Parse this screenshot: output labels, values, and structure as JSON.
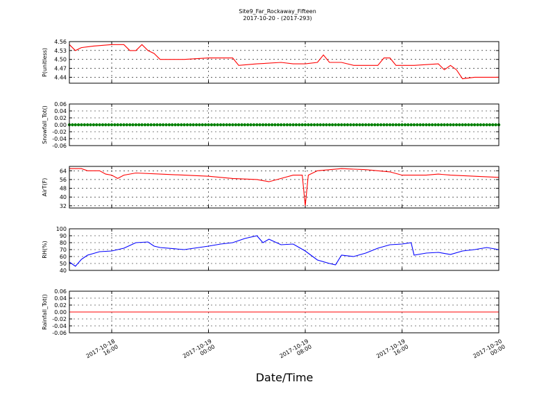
{
  "chart_data": {
    "type": "line",
    "title": "Site9_Far_Rockaway_Fifteen",
    "subtitle": "2017-10-20 - (2017-293)",
    "xlabel": "Date/Time",
    "x_range": [
      "2017-10-18 12:30",
      "2017-10-20 00:00"
    ],
    "x_ticks": [
      {
        "t": "2017-10-18 16:00",
        "label": [
          "2017-10-18",
          "16:00"
        ]
      },
      {
        "t": "2017-10-19 00:00",
        "label": [
          "2017-10-19",
          "00:00"
        ]
      },
      {
        "t": "2017-10-19 08:00",
        "label": [
          "2017-10-19",
          "08:00"
        ]
      },
      {
        "t": "2017-10-19 16:00",
        "label": [
          "2017-10-19",
          "16:00"
        ]
      },
      {
        "t": "2017-10-20 00:00",
        "label": [
          "2017-10-20",
          "00:00"
        ]
      }
    ],
    "panels": [
      {
        "ylabel": "P(unitless)",
        "color": "#ff0000",
        "marker": "none",
        "ylim": [
          4.42,
          4.56
        ],
        "yticks": [
          "4.56",
          "4.53",
          "4.50",
          "4.47",
          "4.44"
        ],
        "series": [
          {
            "values": [
              [
                "2017-10-18 12:30",
                4.55
              ],
              [
                "2017-10-18 13:00",
                4.53
              ],
              [
                "2017-10-18 13:30",
                4.54
              ],
              [
                "2017-10-18 14:30",
                4.545
              ],
              [
                "2017-10-18 16:00",
                4.55
              ],
              [
                "2017-10-18 17:00",
                4.55
              ],
              [
                "2017-10-18 17:30",
                4.53
              ],
              [
                "2017-10-18 18:00",
                4.53
              ],
              [
                "2017-10-18 18:30",
                4.55
              ],
              [
                "2017-10-18 19:00",
                4.53
              ],
              [
                "2017-10-18 19:30",
                4.52
              ],
              [
                "2017-10-18 20:00",
                4.5
              ],
              [
                "2017-10-18 22:00",
                4.5
              ],
              [
                "2017-10-19 00:00",
                4.505
              ],
              [
                "2017-10-19 02:00",
                4.505
              ],
              [
                "2017-10-19 02:30",
                4.48
              ],
              [
                "2017-10-19 04:00",
                4.485
              ],
              [
                "2017-10-19 06:00",
                4.49
              ],
              [
                "2017-10-19 07:00",
                4.485
              ],
              [
                "2017-10-19 08:00",
                4.485
              ],
              [
                "2017-10-19 09:00",
                4.49
              ],
              [
                "2017-10-19 09:30",
                4.515
              ],
              [
                "2017-10-19 10:00",
                4.49
              ],
              [
                "2017-10-19 11:00",
                4.49
              ],
              [
                "2017-10-19 12:00",
                4.48
              ],
              [
                "2017-10-19 14:00",
                4.48
              ],
              [
                "2017-10-19 14:30",
                4.505
              ],
              [
                "2017-10-19 15:00",
                4.505
              ],
              [
                "2017-10-19 15:30",
                4.48
              ],
              [
                "2017-10-19 17:00",
                4.48
              ],
              [
                "2017-10-19 19:00",
                4.485
              ],
              [
                "2017-10-19 19:30",
                4.465
              ],
              [
                "2017-10-19 20:00",
                4.48
              ],
              [
                "2017-10-19 20:30",
                4.465
              ],
              [
                "2017-10-19 21:00",
                4.435
              ],
              [
                "2017-10-19 22:00",
                4.44
              ],
              [
                "2017-10-20 00:00",
                4.44
              ]
            ]
          }
        ]
      },
      {
        "ylabel": "Snowfall_Tot()",
        "color": "#008000",
        "marker": "dot",
        "ylim": [
          -0.06,
          0.06
        ],
        "yticks": [
          "0.06",
          "0.04",
          "0.02",
          "0.00",
          "-0.02",
          "-0.04",
          "-0.06"
        ],
        "series": [
          {
            "values": [
              [
                "2017-10-18 12:30",
                0.0
              ],
              [
                "2017-10-20 00:00",
                0.0
              ]
            ],
            "sampling": "every 15 min"
          }
        ]
      },
      {
        "ylabel": "AirT(F)",
        "color": "#ff0000",
        "marker": "none",
        "ylim": [
          30,
          68
        ],
        "yticks": [
          "64",
          "56",
          "48",
          "40",
          "32"
        ],
        "series": [
          {
            "values": [
              [
                "2017-10-18 12:30",
                66
              ],
              [
                "2017-10-18 13:30",
                66
              ],
              [
                "2017-10-18 14:00",
                64
              ],
              [
                "2017-10-18 15:00",
                64
              ],
              [
                "2017-10-18 15:30",
                61
              ],
              [
                "2017-10-18 16:00",
                60
              ],
              [
                "2017-10-18 16:30",
                57
              ],
              [
                "2017-10-18 17:00",
                60
              ],
              [
                "2017-10-18 18:00",
                62
              ],
              [
                "2017-10-18 20:00",
                61
              ],
              [
                "2017-10-18 22:00",
                60
              ],
              [
                "2017-10-19 00:00",
                59
              ],
              [
                "2017-10-19 02:00",
                57
              ],
              [
                "2017-10-19 04:00",
                56
              ],
              [
                "2017-10-19 05:00",
                54
              ],
              [
                "2017-10-19 06:00",
                57
              ],
              [
                "2017-10-19 07:00",
                60
              ],
              [
                "2017-10-19 07:45",
                60
              ],
              [
                "2017-10-19 08:00",
                32
              ],
              [
                "2017-10-19 08:15",
                60
              ],
              [
                "2017-10-19 09:00",
                64
              ],
              [
                "2017-10-19 11:00",
                66
              ],
              [
                "2017-10-19 13:00",
                65
              ],
              [
                "2017-10-19 15:00",
                63
              ],
              [
                "2017-10-19 16:00",
                60
              ],
              [
                "2017-10-19 18:00",
                60
              ],
              [
                "2017-10-19 19:00",
                61
              ],
              [
                "2017-10-19 20:00",
                60
              ],
              [
                "2017-10-19 22:00",
                59
              ],
              [
                "2017-10-20 00:00",
                58
              ]
            ]
          }
        ]
      },
      {
        "ylabel": "RH(%)",
        "color": "#0000ff",
        "marker": "none",
        "ylim": [
          40,
          100
        ],
        "yticks": [
          "100",
          "90",
          "80",
          "70",
          "60",
          "50",
          "40"
        ],
        "series": [
          {
            "values": [
              [
                "2017-10-18 12:30",
                52
              ],
              [
                "2017-10-18 13:00",
                46
              ],
              [
                "2017-10-18 13:30",
                56
              ],
              [
                "2017-10-18 14:00",
                62
              ],
              [
                "2017-10-18 15:00",
                67
              ],
              [
                "2017-10-18 16:00",
                68
              ],
              [
                "2017-10-18 17:00",
                72
              ],
              [
                "2017-10-18 18:00",
                80
              ],
              [
                "2017-10-18 19:00",
                81
              ],
              [
                "2017-10-18 19:30",
                75
              ],
              [
                "2017-10-18 20:00",
                73
              ],
              [
                "2017-10-18 22:00",
                70
              ],
              [
                "2017-10-19 00:00",
                75
              ],
              [
                "2017-10-19 01:00",
                78
              ],
              [
                "2017-10-19 02:00",
                80
              ],
              [
                "2017-10-19 03:00",
                86
              ],
              [
                "2017-10-19 04:00",
                90
              ],
              [
                "2017-10-19 04:30",
                80
              ],
              [
                "2017-10-19 05:00",
                85
              ],
              [
                "2017-10-19 06:00",
                77
              ],
              [
                "2017-10-19 07:00",
                78
              ],
              [
                "2017-10-19 08:00",
                68
              ],
              [
                "2017-10-19 09:00",
                55
              ],
              [
                "2017-10-19 10:00",
                50
              ],
              [
                "2017-10-19 10:30",
                48
              ],
              [
                "2017-10-19 11:00",
                62
              ],
              [
                "2017-10-19 12:00",
                60
              ],
              [
                "2017-10-19 13:00",
                65
              ],
              [
                "2017-10-19 14:00",
                72
              ],
              [
                "2017-10-19 15:00",
                77
              ],
              [
                "2017-10-19 16:00",
                78
              ],
              [
                "2017-10-19 16:45",
                80
              ],
              [
                "2017-10-19 17:00",
                62
              ],
              [
                "2017-10-19 18:00",
                65
              ],
              [
                "2017-10-19 19:00",
                66
              ],
              [
                "2017-10-19 20:00",
                63
              ],
              [
                "2017-10-19 21:00",
                68
              ],
              [
                "2017-10-19 22:00",
                70
              ],
              [
                "2017-10-19 23:00",
                73
              ],
              [
                "2017-10-20 00:00",
                70
              ]
            ]
          }
        ]
      },
      {
        "ylabel": "Rainfall_Tot()",
        "color": "#ff0000",
        "marker": "none",
        "ylim": [
          -0.06,
          0.06
        ],
        "yticks": [
          "0.06",
          "0.04",
          "0.02",
          "0.00",
          "-0.02",
          "-0.04",
          "-0.06"
        ],
        "series": [
          {
            "values": [
              [
                "2017-10-18 12:30",
                0.0
              ],
              [
                "2017-10-20 00:00",
                0.0
              ]
            ]
          }
        ]
      }
    ],
    "grid": true,
    "legend": "none"
  }
}
